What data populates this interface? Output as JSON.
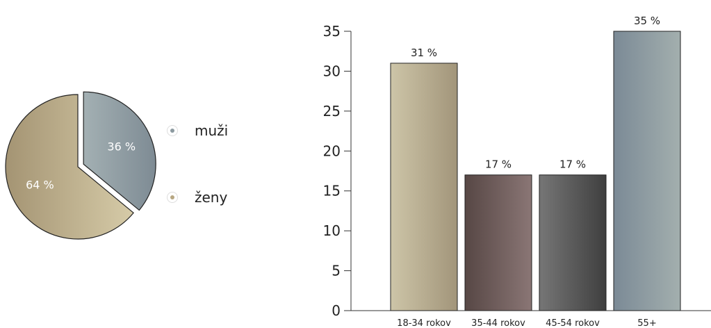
{
  "chart_data": [
    {
      "type": "pie",
      "slices": [
        {
          "name": "muži",
          "value": 36,
          "label": "36 %",
          "color": "#8e9ea3"
        },
        {
          "name": "ženy",
          "value": 64,
          "label": "64 %",
          "color": "#b3a583"
        }
      ],
      "legend": {
        "position": "right",
        "items": [
          "muži",
          "ženy"
        ]
      }
    },
    {
      "type": "bar",
      "categories": [
        "18-34 rokov",
        "35-44 rokov",
        "45-54 rokov",
        "55+"
      ],
      "values": [
        31,
        17,
        17,
        35
      ],
      "data_labels": [
        "31 %",
        "17 %",
        "17 %",
        "35 %"
      ],
      "colors": [
        "#b8ad8f",
        "#6e5f5d",
        "#575757",
        "#8c9aa0"
      ],
      "ylim": [
        0,
        35
      ],
      "yticks": [
        0,
        5,
        10,
        15,
        20,
        25,
        30,
        35
      ],
      "grid": false
    }
  ]
}
